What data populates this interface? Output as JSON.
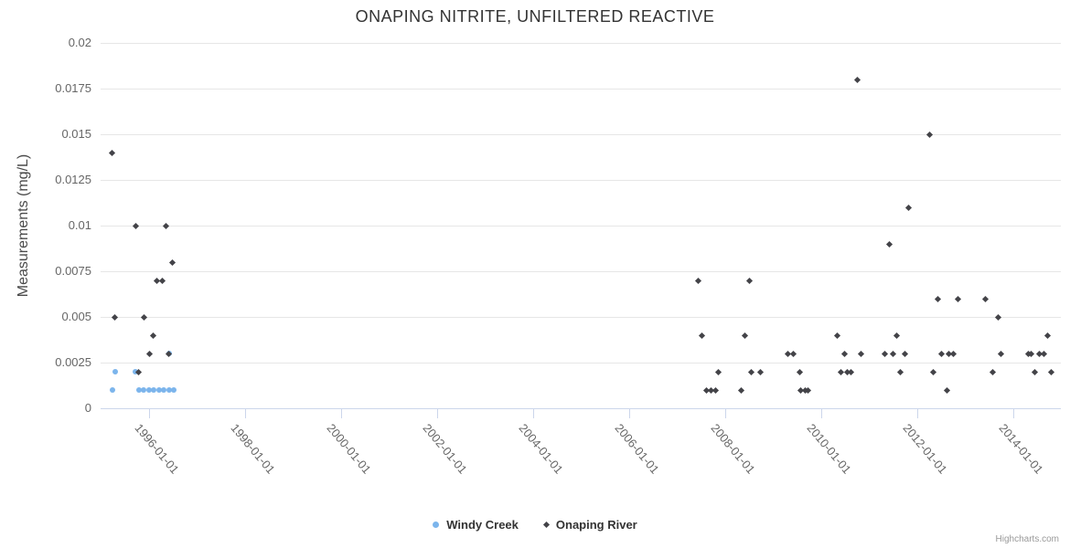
{
  "title": "ONAPING NITRITE, UNFILTERED REACTIVE",
  "credit_label": "Highcharts.com",
  "colors": {
    "windy_creek": "#7cb5ec",
    "onaping_river": "#434348",
    "grid_line": "#e6e6e6",
    "axis_line": "#ccd6eb",
    "tick_label": "#666666",
    "title_text": "#333333",
    "legend_text": "#333333",
    "credit_text": "#999999",
    "background": "#ffffff"
  },
  "legend": {
    "items": [
      {
        "label": "Windy Creek",
        "marker": "circle",
        "color": "#7cb5ec"
      },
      {
        "label": "Onaping River",
        "marker": "diamond",
        "color": "#434348"
      }
    ]
  },
  "chart_data": {
    "type": "scatter",
    "title": "ONAPING NITRITE, UNFILTERED REACTIVE",
    "xlabel": "",
    "ylabel": "Measurements (mg/L)",
    "grid": true,
    "legend_position": "bottom-center",
    "x_axis": {
      "type": "datetime",
      "min_year": 1995.0,
      "max_year": 2015.0,
      "tick_years": [
        1996,
        1998,
        2000,
        2002,
        2004,
        2006,
        2008,
        2010,
        2012,
        2014
      ],
      "tick_labels": [
        "1996-01-01",
        "1998-01-01",
        "2000-01-01",
        "2002-01-01",
        "2004-01-01",
        "2006-01-01",
        "2008-01-01",
        "2010-01-01",
        "2012-01-01",
        "2014-01-01"
      ]
    },
    "y_axis": {
      "min": 0,
      "max": 0.02,
      "tick_interval": 0.0025,
      "tick_values": [
        0,
        0.0025,
        0.005,
        0.0075,
        0.01,
        0.0125,
        0.015,
        0.0175,
        0.02
      ],
      "tick_labels": [
        "0",
        "0.0025",
        "0.005",
        "0.0075",
        "0.01",
        "0.0125",
        "0.015",
        "0.0175",
        "0.02"
      ]
    },
    "series": [
      {
        "name": "Windy Creek",
        "marker": "circle",
        "color": "#7cb5ec",
        "points": [
          [
            1995.24,
            0.001
          ],
          [
            1995.3,
            0.002
          ],
          [
            1995.72,
            0.002
          ],
          [
            1995.8,
            0.001
          ],
          [
            1995.9,
            0.001
          ],
          [
            1996.01,
            0.001
          ],
          [
            1996.11,
            0.001
          ],
          [
            1996.21,
            0.001
          ],
          [
            1996.31,
            0.001
          ],
          [
            1996.42,
            0.001
          ],
          [
            1996.52,
            0.001
          ],
          [
            1996.42,
            0.003
          ]
        ]
      },
      {
        "name": "Onaping River",
        "marker": "diamond",
        "color": "#434348",
        "points": [
          [
            1995.24,
            0.014
          ],
          [
            1995.29,
            0.005
          ],
          [
            1995.74,
            0.01
          ],
          [
            1995.79,
            0.002
          ],
          [
            1995.91,
            0.005
          ],
          [
            1996.02,
            0.003
          ],
          [
            1996.09,
            0.004
          ],
          [
            1996.18,
            0.007
          ],
          [
            1996.28,
            0.007
          ],
          [
            1996.36,
            0.01
          ],
          [
            1996.42,
            0.003
          ],
          [
            1996.49,
            0.008
          ],
          [
            2007.45,
            0.007
          ],
          [
            2007.52,
            0.004
          ],
          [
            2007.62,
            0.001
          ],
          [
            2007.71,
            0.001
          ],
          [
            2007.81,
            0.001
          ],
          [
            2007.86,
            0.002
          ],
          [
            2008.34,
            0.001
          ],
          [
            2008.42,
            0.004
          ],
          [
            2008.51,
            0.007
          ],
          [
            2008.56,
            0.002
          ],
          [
            2008.75,
            0.002
          ],
          [
            2009.31,
            0.003
          ],
          [
            2009.42,
            0.003
          ],
          [
            2009.56,
            0.002
          ],
          [
            2009.59,
            0.001
          ],
          [
            2009.67,
            0.001
          ],
          [
            2009.74,
            0.001
          ],
          [
            2010.34,
            0.004
          ],
          [
            2010.42,
            0.002
          ],
          [
            2010.49,
            0.003
          ],
          [
            2010.56,
            0.002
          ],
          [
            2010.62,
            0.002
          ],
          [
            2010.76,
            0.018
          ],
          [
            2010.84,
            0.003
          ],
          [
            2011.34,
            0.003
          ],
          [
            2011.42,
            0.009
          ],
          [
            2011.5,
            0.003
          ],
          [
            2011.58,
            0.004
          ],
          [
            2011.66,
            0.002
          ],
          [
            2011.75,
            0.003
          ],
          [
            2011.83,
            0.011
          ],
          [
            2012.27,
            0.015
          ],
          [
            2012.35,
            0.002
          ],
          [
            2012.43,
            0.006
          ],
          [
            2012.52,
            0.003
          ],
          [
            2012.62,
            0.001
          ],
          [
            2012.67,
            0.003
          ],
          [
            2012.76,
            0.003
          ],
          [
            2012.86,
            0.006
          ],
          [
            2013.43,
            0.006
          ],
          [
            2013.59,
            0.002
          ],
          [
            2013.7,
            0.005
          ],
          [
            2013.76,
            0.003
          ],
          [
            2014.32,
            0.003
          ],
          [
            2014.39,
            0.003
          ],
          [
            2014.46,
            0.002
          ],
          [
            2014.56,
            0.003
          ],
          [
            2014.65,
            0.003
          ],
          [
            2014.72,
            0.004
          ],
          [
            2014.8,
            0.002
          ]
        ]
      }
    ]
  }
}
